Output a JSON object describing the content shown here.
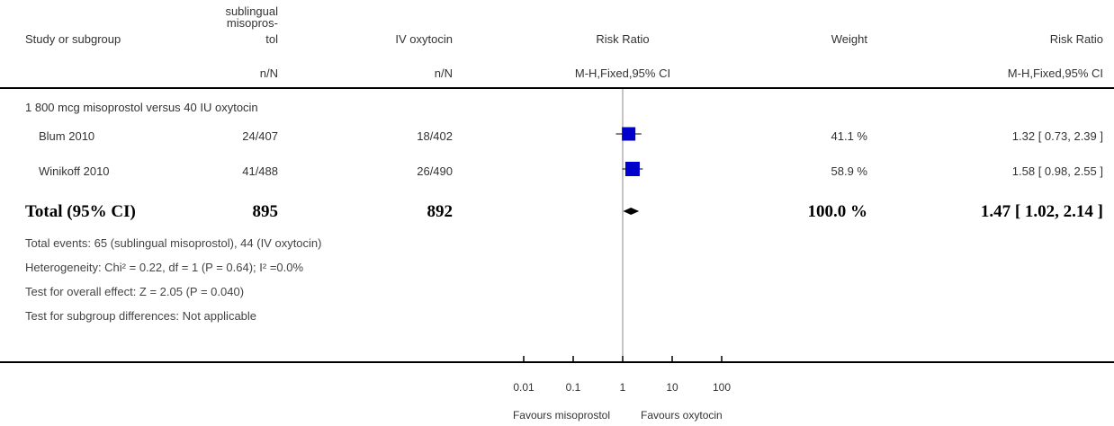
{
  "header": {
    "col_study": "Study or subgroup",
    "col_exp_lines": [
      "sublingual",
      "misopros-",
      "tol"
    ],
    "col_ctrl": "IV oxytocin",
    "col_rr_plot": "Risk Ratio",
    "col_weight": "Weight",
    "col_rr_text": "Risk Ratio",
    "sub_exp": "n/N",
    "sub_ctrl": "n/N",
    "sub_rr_plot": "M-H,Fixed,95% CI",
    "sub_rr_text": "M-H,Fixed,95% CI"
  },
  "subgroup_title": "1 800 mcg misoprostol versus 40 IU oxytocin",
  "studies": [
    {
      "name": "Blum 2010",
      "exp": "24/407",
      "ctrl": "18/402",
      "weight": "41.1 %",
      "ci_text": "1.32 [ 0.73, 2.39 ]"
    },
    {
      "name": "Winikoff 2010",
      "exp": "41/488",
      "ctrl": "26/490",
      "weight": "58.9 %",
      "ci_text": "1.58 [ 0.98, 2.55 ]"
    }
  ],
  "total": {
    "label": "Total (95% CI)",
    "exp": "895",
    "ctrl": "892",
    "weight": "100.0 %",
    "ci_text": "1.47 [ 1.02, 2.14 ]"
  },
  "footnotes": {
    "events": "Total events: 65 (sublingual misoprostol), 44 (IV oxytocin)",
    "heterogeneity": "Heterogeneity: Chi² = 0.22, df = 1 (P = 0.64); I² =0.0%",
    "overall": "Test for overall effect: Z = 2.05 (P = 0.040)",
    "subgroup_diff": "Test for subgroup differences: Not applicable"
  },
  "axis": {
    "tick_labels": [
      "0.01",
      "0.1",
      "1",
      "10",
      "100"
    ],
    "favours_left": "Favours misoprostol",
    "favours_right": "Favours oxytocin"
  },
  "chart_data": {
    "type": "forest",
    "scale": "log",
    "xlim": [
      0.01,
      100
    ],
    "ticks": [
      0.01,
      0.1,
      1,
      10,
      100
    ],
    "null_line": 1,
    "studies": [
      {
        "name": "Blum 2010",
        "rr": 1.32,
        "lo": 0.73,
        "hi": 2.39,
        "weight": 41.1
      },
      {
        "name": "Winikoff 2010",
        "rr": 1.58,
        "lo": 0.98,
        "hi": 2.55,
        "weight": 58.9
      }
    ],
    "total": {
      "rr": 1.47,
      "lo": 1.02,
      "hi": 2.14
    },
    "colors": {
      "square": "#0000cc",
      "diamond": "#000000"
    }
  }
}
